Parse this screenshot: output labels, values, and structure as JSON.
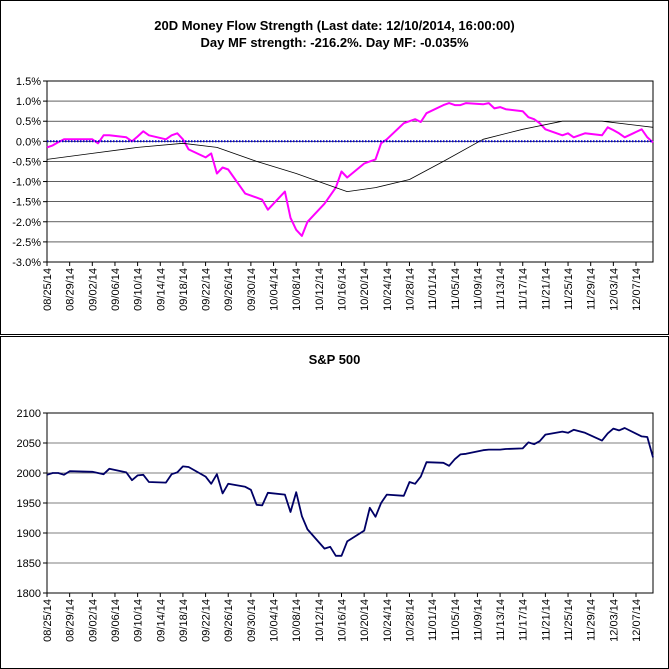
{
  "colors": {
    "money_flow": "#ff00ff",
    "average": "#000000",
    "zero_line": "#0000cc",
    "sp500": "#000066",
    "gridline": "#000000",
    "background": "#ffffff"
  },
  "chart_data": [
    {
      "type": "line",
      "title": "20D Money Flow Strength (Last date: 12/10/2014, 16:00:00)",
      "subtitle": "Day MF strength: -216.2%. Day MF: -0.035%",
      "xlabel": "",
      "ylabel": "",
      "ylim": [
        -3.0,
        1.5
      ],
      "y_ticks": [
        1.5,
        1.0,
        0.5,
        0.0,
        -0.5,
        -1.0,
        -1.5,
        -2.0,
        -2.5,
        -3.0
      ],
      "y_tick_labels": [
        "1.5%",
        "1.0%",
        "0.5%",
        "0.0%",
        "-0.5%",
        "-1.0%",
        "-1.5%",
        "-2.0%",
        "-2.5%",
        "-3.0%"
      ],
      "grid": true,
      "legend": "none",
      "x_tick_labels": [
        "08/25/14",
        "08/29/14",
        "09/02/14",
        "09/06/14",
        "09/10/14",
        "09/14/14",
        "09/18/14",
        "09/22/14",
        "09/26/14",
        "09/30/14",
        "10/04/14",
        "10/08/14",
        "10/12/14",
        "10/16/14",
        "10/20/14",
        "10/24/14",
        "10/28/14",
        "11/01/14",
        "11/05/14",
        "11/09/14",
        "11/13/14",
        "11/17/14",
        "11/21/14",
        "11/25/14",
        "11/29/14",
        "12/03/14",
        "12/07/14"
      ],
      "x_start": "08/25/14",
      "x_end": "12/10/14",
      "series": [
        {
          "color": "#ff00ff",
          "style": "thick line",
          "x": [
            "08/25/14",
            "08/26/14",
            "08/27/14",
            "08/28/14",
            "08/29/14",
            "09/02/14",
            "09/03/14",
            "09/04/14",
            "09/05/14",
            "09/08/14",
            "09/09/14",
            "09/10/14",
            "09/11/14",
            "09/12/14",
            "09/15/14",
            "09/16/14",
            "09/17/14",
            "09/18/14",
            "09/19/14",
            "09/22/14",
            "09/23/14",
            "09/24/14",
            "09/25/14",
            "09/26/14",
            "09/29/14",
            "09/30/14",
            "10/01/14",
            "10/02/14",
            "10/03/14",
            "10/06/14",
            "10/07/14",
            "10/08/14",
            "10/09/14",
            "10/10/14",
            "10/13/14",
            "10/14/14",
            "10/15/14",
            "10/16/14",
            "10/17/14",
            "10/20/14",
            "10/21/14",
            "10/22/14",
            "10/23/14",
            "10/24/14",
            "10/27/14",
            "10/28/14",
            "10/29/14",
            "10/30/14",
            "10/31/14",
            "11/03/14",
            "11/04/14",
            "11/05/14",
            "11/06/14",
            "11/07/14",
            "11/10/14",
            "11/11/14",
            "11/12/14",
            "11/13/14",
            "11/14/14",
            "11/17/14",
            "11/18/14",
            "11/19/14",
            "11/20/14",
            "11/21/14",
            "11/24/14",
            "11/25/14",
            "11/26/14",
            "11/28/14",
            "12/01/14",
            "12/02/14",
            "12/03/14",
            "12/04/14",
            "12/05/14",
            "12/08/14",
            "12/09/14",
            "12/10/14"
          ],
          "values": [
            -0.15,
            -0.1,
            -0.02,
            0.05,
            0.05,
            0.05,
            -0.05,
            0.15,
            0.15,
            0.1,
            0.0,
            0.12,
            0.25,
            0.15,
            0.05,
            0.15,
            0.2,
            0.05,
            -0.2,
            -0.4,
            -0.3,
            -0.8,
            -0.65,
            -0.7,
            -1.3,
            -1.35,
            -1.4,
            -1.45,
            -1.7,
            -1.25,
            -1.9,
            -2.2,
            -2.35,
            -2.0,
            -1.55,
            -1.35,
            -1.15,
            -0.75,
            -0.9,
            -0.55,
            -0.5,
            -0.45,
            -0.05,
            0.05,
            0.45,
            0.5,
            0.55,
            0.48,
            0.7,
            0.9,
            0.95,
            0.9,
            0.9,
            0.95,
            0.92,
            0.95,
            0.82,
            0.85,
            0.8,
            0.75,
            0.6,
            0.55,
            0.45,
            0.3,
            0.15,
            0.2,
            0.1,
            0.2,
            0.15,
            0.35,
            0.28,
            0.2,
            0.1,
            0.3,
            0.1,
            -0.03
          ]
        },
        {
          "color": "#000000",
          "style": "thin line",
          "x": [
            "08/25/14",
            "09/02/14",
            "09/10/14",
            "09/18/14",
            "09/24/14",
            "10/01/14",
            "10/08/14",
            "10/13/14",
            "10/17/14",
            "10/22/14",
            "10/28/14",
            "11/03/14",
            "11/10/14",
            "11/17/14",
            "11/24/14",
            "12/01/14",
            "12/10/14"
          ],
          "values": [
            -0.45,
            -0.3,
            -0.15,
            -0.05,
            -0.15,
            -0.5,
            -0.8,
            -1.05,
            -1.25,
            -1.15,
            -0.95,
            -0.5,
            0.05,
            0.3,
            0.5,
            0.5,
            0.35
          ]
        },
        {
          "color": "#0000cc",
          "style": "dotted line",
          "x": [
            "08/25/14",
            "12/10/14"
          ],
          "values": [
            0.0,
            0.0
          ]
        }
      ]
    },
    {
      "type": "line",
      "title": "S&P 500",
      "xlabel": "",
      "ylabel": "",
      "ylim": [
        1800,
        2100
      ],
      "y_ticks": [
        2100,
        2050,
        2000,
        1950,
        1900,
        1850,
        1800
      ],
      "y_tick_labels": [
        "2100",
        "2050",
        "2000",
        "1950",
        "1900",
        "1850",
        "1800"
      ],
      "grid": true,
      "legend": "none",
      "x_tick_labels": [
        "08/25/14",
        "08/29/14",
        "09/02/14",
        "09/06/14",
        "09/10/14",
        "09/14/14",
        "09/18/14",
        "09/22/14",
        "09/26/14",
        "09/30/14",
        "10/04/14",
        "10/08/14",
        "10/12/14",
        "10/16/14",
        "10/20/14",
        "10/24/14",
        "10/28/14",
        "11/01/14",
        "11/05/14",
        "11/09/14",
        "11/13/14",
        "11/17/14",
        "11/21/14",
        "11/25/14",
        "11/29/14",
        "12/03/14",
        "12/07/14"
      ],
      "x_start": "08/25/14",
      "x_end": "12/10/14",
      "series": [
        {
          "color": "#000066",
          "style": "line",
          "x": [
            "08/25/14",
            "08/26/14",
            "08/27/14",
            "08/28/14",
            "08/29/14",
            "09/02/14",
            "09/03/14",
            "09/04/14",
            "09/05/14",
            "09/08/14",
            "09/09/14",
            "09/10/14",
            "09/11/14",
            "09/12/14",
            "09/15/14",
            "09/16/14",
            "09/17/14",
            "09/18/14",
            "09/19/14",
            "09/22/14",
            "09/23/14",
            "09/24/14",
            "09/25/14",
            "09/26/14",
            "09/29/14",
            "09/30/14",
            "10/01/14",
            "10/02/14",
            "10/03/14",
            "10/06/14",
            "10/07/14",
            "10/08/14",
            "10/09/14",
            "10/10/14",
            "10/13/14",
            "10/14/14",
            "10/15/14",
            "10/16/14",
            "10/17/14",
            "10/20/14",
            "10/21/14",
            "10/22/14",
            "10/23/14",
            "10/24/14",
            "10/27/14",
            "10/28/14",
            "10/29/14",
            "10/30/14",
            "10/31/14",
            "11/03/14",
            "11/04/14",
            "11/05/14",
            "11/06/14",
            "11/07/14",
            "11/10/14",
            "11/11/14",
            "11/12/14",
            "11/13/14",
            "11/14/14",
            "11/17/14",
            "11/18/14",
            "11/19/14",
            "11/20/14",
            "11/21/14",
            "11/24/14",
            "11/25/14",
            "11/26/14",
            "11/28/14",
            "12/01/14",
            "12/02/14",
            "12/03/14",
            "12/04/14",
            "12/05/14",
            "12/08/14",
            "12/09/14",
            "12/10/14"
          ],
          "values": [
            1997,
            2000,
            2000,
            1997,
            2003,
            2002,
            2000,
            1998,
            2007,
            2001,
            1988,
            1996,
            1997,
            1985,
            1984,
            1998,
            2001,
            2011,
            2010,
            1994,
            1982,
            1998,
            1966,
            1982,
            1977,
            1972,
            1947,
            1946,
            1967,
            1964,
            1935,
            1968,
            1928,
            1906,
            1874,
            1877,
            1862,
            1862,
            1886,
            1904,
            1942,
            1927,
            1950,
            1964,
            1962,
            1985,
            1982,
            1994,
            2018,
            2017,
            2012,
            2023,
            2031,
            2032,
            2038,
            2039,
            2039,
            2039,
            2040,
            2041,
            2051,
            2048,
            2053,
            2064,
            2069,
            2067,
            2072,
            2067,
            2054,
            2066,
            2074,
            2071,
            2075,
            2061,
            2060,
            2026
          ]
        }
      ]
    }
  ]
}
